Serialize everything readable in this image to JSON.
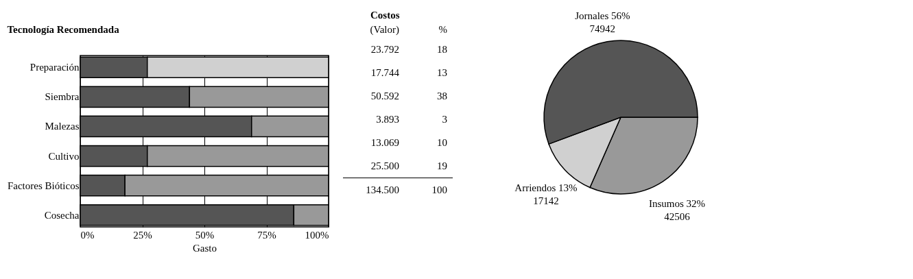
{
  "chart_data": [
    {
      "type": "bar",
      "orientation": "horizontal",
      "stacked": true,
      "title": "Tecnología Recomendada",
      "xlabel": "Gasto",
      "categories": [
        "Preparación",
        "Siembra",
        "Malezas",
        "Cultivo",
        "Factores Bióticos",
        "Cosecha"
      ],
      "xlim": [
        0,
        100
      ],
      "xticks": [
        {
          "value": 0,
          "label": "0%"
        },
        {
          "value": 25,
          "label": "25%"
        },
        {
          "value": 50,
          "label": "50%"
        },
        {
          "value": 75,
          "label": "75%"
        },
        {
          "value": 100,
          "label": "100%"
        }
      ],
      "grid": "x",
      "legend": false,
      "series": [
        {
          "color": "#555555",
          "values": [
            27,
            44,
            69,
            27,
            18,
            86
          ]
        },
        {
          "color": "#d0d0d0",
          "values": [
            73,
            null,
            null,
            null,
            null,
            null
          ]
        },
        {
          "color": "#999999",
          "values": [
            null,
            56,
            31,
            73,
            82,
            14
          ]
        }
      ]
    },
    {
      "type": "other",
      "title": "Costos",
      "annotations": [
        "(Valor)",
        "%",
        "23.792",
        "18",
        "17.744",
        "13",
        "50.592",
        "38",
        "3.893",
        "3",
        "13.069",
        "10",
        "25.500",
        "19",
        "134.500",
        "100"
      ]
    },
    {
      "type": "pie",
      "categories": [
        "Insumos",
        "Arriendos",
        "Jornales"
      ],
      "values": [
        42506,
        17142,
        74942
      ],
      "colors": [
        "#999999",
        "#d0d0d0",
        "#555555"
      ],
      "value_labels": [
        "32%\n42506",
        "13%\n17142",
        "56%\n74942"
      ]
    }
  ]
}
